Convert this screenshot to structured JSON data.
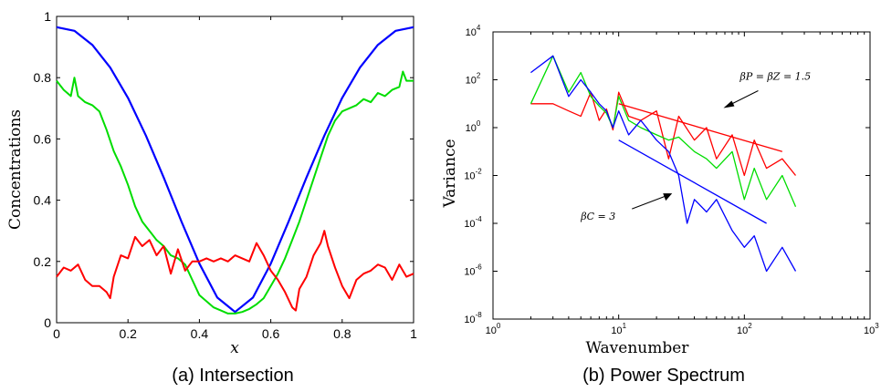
{
  "chart_data": [
    {
      "type": "line",
      "caption": "(a)  Intersection",
      "xlabel": "x",
      "ylabel": "Concentrations",
      "xlim": [
        0,
        1
      ],
      "ylim": [
        0,
        1
      ],
      "xticks": [
        "0",
        "0.2",
        "0.4",
        "0.6",
        "0.8",
        "1"
      ],
      "yticks": [
        "0",
        "0.2",
        "0.4",
        "0.6",
        "0.8",
        "1"
      ],
      "grid": false,
      "series": [
        {
          "color": "#0000ff",
          "x": [
            0,
            0.05,
            0.1,
            0.15,
            0.2,
            0.25,
            0.3,
            0.35,
            0.4,
            0.45,
            0.5,
            0.55,
            0.6,
            0.65,
            0.7,
            0.75,
            0.8,
            0.85,
            0.9,
            0.95,
            1
          ],
          "y": [
            0.965,
            0.953,
            0.907,
            0.833,
            0.734,
            0.611,
            0.474,
            0.33,
            0.193,
            0.082,
            0.035,
            0.082,
            0.193,
            0.33,
            0.474,
            0.611,
            0.734,
            0.833,
            0.907,
            0.953,
            0.965
          ]
        },
        {
          "color": "#00dd00",
          "x": [
            0,
            0.02,
            0.04,
            0.05,
            0.06,
            0.08,
            0.1,
            0.12,
            0.14,
            0.16,
            0.18,
            0.2,
            0.22,
            0.24,
            0.26,
            0.28,
            0.3,
            0.32,
            0.34,
            0.36,
            0.38,
            0.4,
            0.42,
            0.44,
            0.46,
            0.48,
            0.5,
            0.52,
            0.54,
            0.56,
            0.58,
            0.6,
            0.62,
            0.64,
            0.66,
            0.68,
            0.7,
            0.72,
            0.74,
            0.76,
            0.78,
            0.8,
            0.82,
            0.84,
            0.86,
            0.88,
            0.9,
            0.92,
            0.94,
            0.96,
            0.97,
            0.98,
            1
          ],
          "y": [
            0.79,
            0.76,
            0.74,
            0.8,
            0.74,
            0.72,
            0.71,
            0.69,
            0.63,
            0.56,
            0.51,
            0.45,
            0.38,
            0.33,
            0.3,
            0.27,
            0.25,
            0.22,
            0.21,
            0.19,
            0.14,
            0.09,
            0.07,
            0.05,
            0.04,
            0.03,
            0.03,
            0.035,
            0.045,
            0.06,
            0.08,
            0.12,
            0.16,
            0.21,
            0.27,
            0.33,
            0.4,
            0.47,
            0.54,
            0.61,
            0.66,
            0.69,
            0.7,
            0.71,
            0.73,
            0.72,
            0.75,
            0.74,
            0.76,
            0.77,
            0.82,
            0.79,
            0.79
          ]
        },
        {
          "color": "#ff0000",
          "x": [
            0,
            0.02,
            0.04,
            0.06,
            0.08,
            0.1,
            0.12,
            0.14,
            0.15,
            0.16,
            0.18,
            0.2,
            0.22,
            0.24,
            0.26,
            0.28,
            0.3,
            0.32,
            0.34,
            0.36,
            0.38,
            0.4,
            0.42,
            0.44,
            0.46,
            0.48,
            0.5,
            0.52,
            0.54,
            0.56,
            0.58,
            0.6,
            0.62,
            0.64,
            0.66,
            0.67,
            0.68,
            0.7,
            0.72,
            0.74,
            0.75,
            0.76,
            0.78,
            0.8,
            0.82,
            0.84,
            0.86,
            0.88,
            0.9,
            0.92,
            0.94,
            0.96,
            0.98,
            1
          ],
          "y": [
            0.15,
            0.18,
            0.17,
            0.19,
            0.14,
            0.12,
            0.12,
            0.1,
            0.08,
            0.15,
            0.22,
            0.21,
            0.28,
            0.25,
            0.27,
            0.22,
            0.25,
            0.16,
            0.24,
            0.17,
            0.2,
            0.2,
            0.21,
            0.2,
            0.21,
            0.2,
            0.22,
            0.21,
            0.2,
            0.26,
            0.22,
            0.17,
            0.14,
            0.1,
            0.05,
            0.04,
            0.11,
            0.15,
            0.22,
            0.26,
            0.3,
            0.25,
            0.18,
            0.12,
            0.08,
            0.14,
            0.16,
            0.17,
            0.19,
            0.18,
            0.14,
            0.19,
            0.15,
            0.16
          ]
        }
      ]
    },
    {
      "type": "line",
      "caption": "(b)  Power Spectrum",
      "xlabel": "Wavenumber",
      "ylabel": "Variance",
      "xscale": "log",
      "yscale": "log",
      "xlim": [
        1,
        1000
      ],
      "ylim": [
        1e-08,
        10000
      ],
      "xticks": [
        {
          "base": "10",
          "exp": "0"
        },
        {
          "base": "10",
          "exp": "1"
        },
        {
          "base": "10",
          "exp": "2"
        },
        {
          "base": "10",
          "exp": "3"
        }
      ],
      "yticks": [
        {
          "base": "10",
          "exp": "-8"
        },
        {
          "base": "10",
          "exp": "-6"
        },
        {
          "base": "10",
          "exp": "-4"
        },
        {
          "base": "10",
          "exp": "-2"
        },
        {
          "base": "10",
          "exp": "0"
        },
        {
          "base": "10",
          "exp": "2"
        },
        {
          "base": "10",
          "exp": "4"
        }
      ],
      "grid": false,
      "annotations": [
        {
          "text": "βP = βZ = 1.5",
          "x": 180,
          "y": 100
        },
        {
          "text": "βC = 3",
          "x": 5,
          "y": 0.0002
        }
      ],
      "series": [
        {
          "color": "#ff0000",
          "x": [
            2,
            3,
            4,
            5,
            6,
            7,
            8,
            9,
            10,
            12,
            15,
            20,
            25,
            30,
            40,
            50,
            60,
            80,
            100,
            120,
            150,
            200,
            256
          ],
          "y": [
            10,
            10,
            5,
            3,
            30,
            2,
            6,
            0.8,
            30,
            3,
            2,
            5,
            0.05,
            3,
            0.3,
            1,
            0.05,
            0.5,
            0.01,
            0.3,
            0.02,
            0.05,
            0.01
          ]
        },
        {
          "color": "#00dd00",
          "x": [
            2,
            3,
            4,
            5,
            6,
            7,
            8,
            9,
            10,
            12,
            15,
            20,
            25,
            30,
            40,
            50,
            60,
            80,
            100,
            120,
            150,
            200,
            256
          ],
          "y": [
            10,
            1000,
            30,
            200,
            20,
            8,
            4,
            1,
            20,
            2,
            1,
            0.5,
            0.3,
            0.4,
            0.1,
            0.05,
            0.02,
            0.1,
            0.001,
            0.02,
            0.001,
            0.01,
            0.0005
          ]
        },
        {
          "color": "#0000ff",
          "x": [
            2,
            3,
            4,
            5,
            6,
            7,
            8,
            9,
            10,
            12,
            15,
            20,
            25,
            30,
            35,
            40,
            50,
            60,
            80,
            100,
            120,
            150,
            200,
            256
          ],
          "y": [
            200,
            1000,
            20,
            100,
            30,
            10,
            5,
            1,
            5,
            0.5,
            2,
            0.3,
            0.1,
            0.01,
            0.0001,
            0.001,
            0.0003,
            0.001,
            5e-05,
            1e-05,
            3e-05,
            1e-06,
            1e-05,
            1e-06
          ]
        },
        {
          "color": "#ff0000",
          "x": [
            10,
            200
          ],
          "y": [
            10,
            0.1
          ]
        },
        {
          "color": "#0000ff",
          "x": [
            10,
            150
          ],
          "y": [
            0.3,
            0.0001
          ]
        }
      ]
    }
  ]
}
